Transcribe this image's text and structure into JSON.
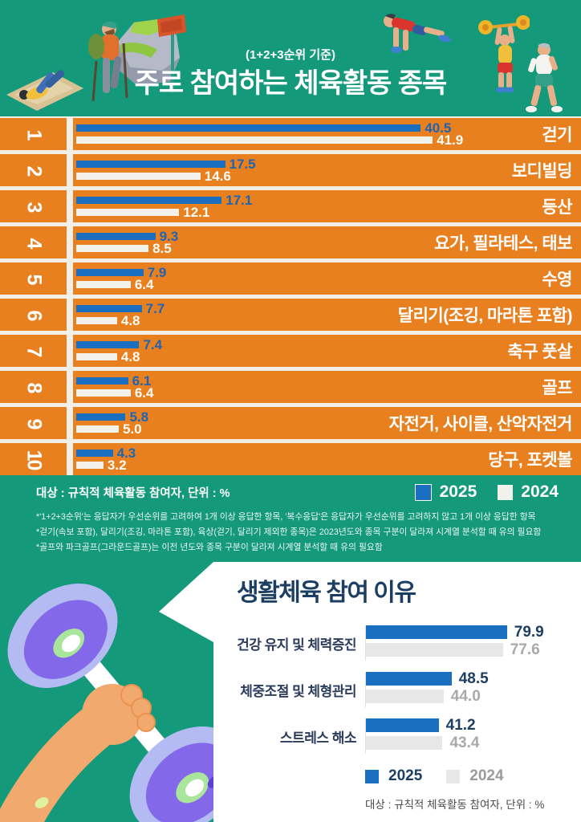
{
  "colors": {
    "teal": "#14997b",
    "orange": "#e8801f",
    "blue_2025": "#1b6fc1",
    "offwhite_2024": "#f3f1ec",
    "navy": "#1d3e63",
    "gray_bar_2024": "#e7e7e7",
    "gray_text_2024": "#9b9b9b"
  },
  "header": {
    "subtitle": "(1+2+3순위 기준)",
    "title": "주로 참여하는 체육활동 종목"
  },
  "legend": {
    "y2025": "2025",
    "y2024": "2024"
  },
  "ranking": {
    "target_note": "대상 : 규칙적 체육활동 참여자, 단위 : %",
    "rows": [
      {
        "rank": "1",
        "label": "걷기",
        "v2025": "40.5",
        "v2024": "41.9"
      },
      {
        "rank": "2",
        "label": "보디빌딩",
        "v2025": "17.5",
        "v2024": "14.6"
      },
      {
        "rank": "3",
        "label": "등산",
        "v2025": "17.1",
        "v2024": "12.1"
      },
      {
        "rank": "4",
        "label": "요가, 필라테스, 태보",
        "v2025": "9.3",
        "v2024": "8.5"
      },
      {
        "rank": "5",
        "label": "수영",
        "v2025": "7.9",
        "v2024": "6.4"
      },
      {
        "rank": "6",
        "label": "달리기(조깅, 마라톤 포함)",
        "v2025": "7.7",
        "v2024": "4.8"
      },
      {
        "rank": "7",
        "label": "축구 풋살",
        "v2025": "7.4",
        "v2024": "4.8"
      },
      {
        "rank": "8",
        "label": "골프",
        "v2025": "6.1",
        "v2024": "6.4"
      },
      {
        "rank": "9",
        "label": "자전거, 사이클, 산악자전거",
        "v2025": "5.8",
        "v2024": "5.0"
      },
      {
        "rank": "10",
        "label": "당구, 포켓볼",
        "v2025": "4.3",
        "v2024": "3.2"
      }
    ]
  },
  "footnotes": [
    "*'1+2+3순위'는 응답자가 우선순위를 고려하여 1개 이상 응답한 항목, '복수응답'은 응답자가 우선순위를 고려하지 않고 1개 이상 응답한 항목",
    "*걷기(속보 포함), 달리기(조깅, 마라톤 포함), 육상(걷기, 달리기 제외한 종목)은 2023년도와 종목 구분이 달라져 시계열 분석할 때 유의 필요함",
    "*골프와 파크골프(그라운드골프)는 이전 년도와 종목 구분이 달라져 시계열 분석할 때 유의 필요함"
  ],
  "reasons": {
    "title": "생활체육 참여 이유",
    "items": [
      {
        "label": "건강 유지 및 체력증진",
        "v2025": "79.9",
        "v2024": "77.6"
      },
      {
        "label": "체중조절 및 체형관리",
        "v2025": "48.5",
        "v2024": "44.0"
      },
      {
        "label": "스트레스 해소",
        "v2025": "41.2",
        "v2024": "43.4"
      }
    ],
    "target_note": "대상 : 규칙적 체육활동 참여자, 단위 : %"
  },
  "chart_data": [
    {
      "type": "bar",
      "orientation": "horizontal",
      "title": "주로 참여하는 체육활동 종목",
      "subtitle": "(1+2+3순위 기준)",
      "unit": "%",
      "categories": [
        "걷기",
        "보디빌딩",
        "등산",
        "요가, 필라테스, 태보",
        "수영",
        "달리기(조깅, 마라톤 포함)",
        "축구 풋살",
        "골프",
        "자전거, 사이클, 산악자전거",
        "당구, 포켓볼"
      ],
      "series": [
        {
          "name": "2025",
          "color": "#1b6fc1",
          "values": [
            40.5,
            17.5,
            17.1,
            9.3,
            7.9,
            7.7,
            7.4,
            6.1,
            5.8,
            4.3
          ]
        },
        {
          "name": "2024",
          "color": "#f3f1ec",
          "values": [
            41.9,
            14.6,
            12.1,
            8.5,
            6.4,
            4.8,
            4.8,
            6.4,
            5.0,
            3.2
          ]
        }
      ],
      "xlim": [
        0,
        45
      ],
      "grid": false,
      "legend_position": "top-right-of-footer"
    },
    {
      "type": "bar",
      "orientation": "horizontal",
      "title": "생활체육 참여 이유",
      "unit": "%",
      "categories": [
        "건강 유지 및 체력증진",
        "체중조절 및 체형관리",
        "스트레스 해소"
      ],
      "series": [
        {
          "name": "2025",
          "color": "#1b6fc1",
          "values": [
            79.9,
            48.5,
            41.2
          ]
        },
        {
          "name": "2024",
          "color": "#e7e7e7",
          "values": [
            77.6,
            44.0,
            43.4
          ]
        }
      ],
      "xlim": [
        0,
        100
      ],
      "grid": false,
      "legend_position": "bottom"
    }
  ]
}
